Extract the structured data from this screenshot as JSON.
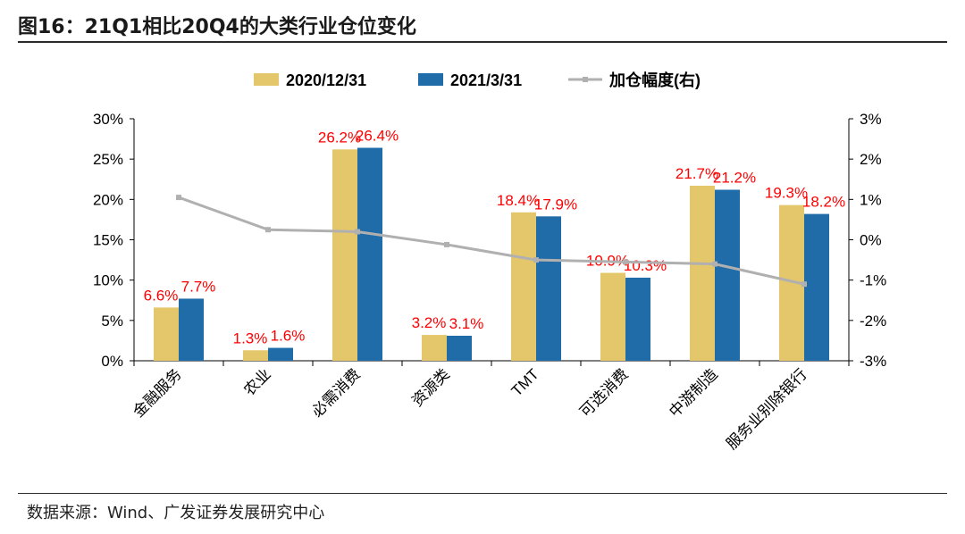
{
  "header": {
    "title": "图16：21Q1相比20Q4的大类行业仓位变化"
  },
  "footer": {
    "source": "数据来源：Wind、广发证券发展研究中心"
  },
  "colors": {
    "series1": "#E5C76B",
    "series2": "#1F6CA8",
    "line": "#B0B0B0",
    "label": "#FF0000",
    "axis": "#000000"
  },
  "chart_data": {
    "type": "bar",
    "title": "",
    "categories": [
      "金融服务",
      "农业",
      "必需消费",
      "资源类",
      "TMT",
      "可选消费",
      "中游制造",
      "服务业别除银行"
    ],
    "series": [
      {
        "name": "2020/12/31",
        "values": [
          6.6,
          1.3,
          26.2,
          3.2,
          18.4,
          10.9,
          21.7,
          19.3
        ],
        "labels": [
          "6.6%",
          "1.3%",
          "26.2%",
          "3.2%",
          "18.4%",
          "10.9%",
          "21.7%",
          "19.3%"
        ]
      },
      {
        "name": "2021/3/31",
        "values": [
          7.7,
          1.6,
          26.4,
          3.1,
          17.9,
          10.3,
          21.2,
          18.2
        ],
        "labels": [
          "7.7%",
          "1.6%",
          "26.4%",
          "3.1%",
          "17.9%",
          "10.3%",
          "21.2%",
          "18.2%"
        ]
      }
    ],
    "line_series": {
      "name": "加仓幅度(右)",
      "values": [
        1.05,
        0.25,
        0.2,
        -0.12,
        -0.5,
        -0.55,
        -0.6,
        -1.1
      ]
    },
    "y_left": {
      "range": [
        0,
        30
      ],
      "ticks": [
        "0%",
        "5%",
        "10%",
        "15%",
        "20%",
        "25%",
        "30%"
      ]
    },
    "y_right": {
      "range": [
        -3,
        3
      ],
      "ticks": [
        "-3%",
        "-2%",
        "-1%",
        "0%",
        "1%",
        "2%",
        "3%"
      ]
    },
    "legend_position": "top-center"
  }
}
